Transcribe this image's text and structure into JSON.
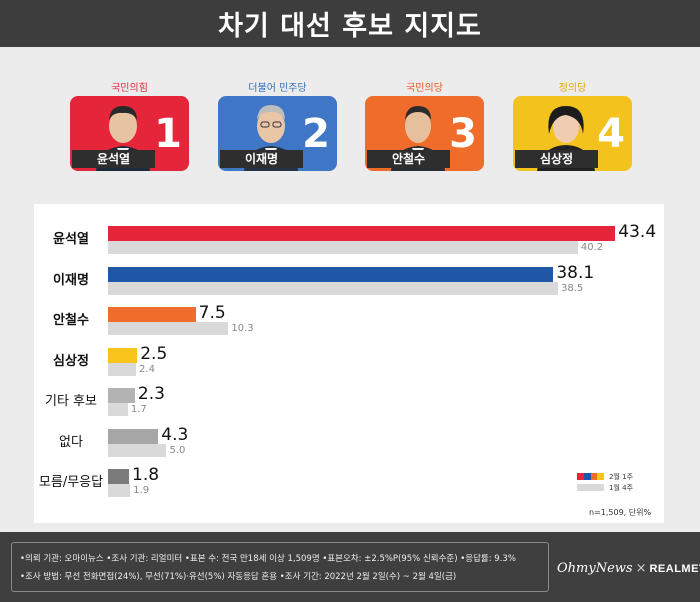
{
  "title": "차기 대선 후보 지지도",
  "candidates": [
    {
      "party": "국민의힘",
      "number": "1",
      "name": "윤석열",
      "color": "#e5263a",
      "party_color": "#e5263a"
    },
    {
      "party": "더불어 민주당",
      "number": "2",
      "name": "이재명",
      "color": "#3f77c6",
      "party_color": "#2f6fbf"
    },
    {
      "party": "국민의당",
      "number": "3",
      "name": "안철수",
      "color": "#ef6c2a",
      "party_color": "#e5581d"
    },
    {
      "party": "정의당",
      "number": "4",
      "name": "심상정",
      "color": "#f4c21c",
      "party_color": "#e3a900"
    }
  ],
  "legend": {
    "current": "2월 1주",
    "previous": "1월 4주",
    "colors": [
      "#e5263a",
      "#1f57a6",
      "#ef6c2a",
      "#f8c31a"
    ]
  },
  "sample_note": "n=1,509, 단위%",
  "footer": {
    "line1": "•의뢰 기관: 오마이뉴스 •조사 기관: 리얼미터 •표본 수: 전국 만18세 이상 1,509명 •표본오차: ±2.5%P(95% 신뢰수준) •응답률: 9.3%",
    "line2": "•조사 방법: 무선 전화면접(24%), 무선(71%)·유선(5%) 자동응답 혼용 •조사 기간: 2022년 2월 2일(수) ~ 2월 4일(금)",
    "brand_left": "OhmyNews",
    "brand_x": "×",
    "brand_right": "REALMETER"
  },
  "chart_data": {
    "type": "bar",
    "orientation": "horizontal",
    "categories": [
      "윤석열",
      "이재명",
      "안철수",
      "심상정",
      "기타 후보",
      "없다",
      "모름/무응답"
    ],
    "series": [
      {
        "name": "2월 1주",
        "values": [
          43.4,
          38.1,
          7.5,
          2.5,
          2.3,
          4.3,
          1.8
        ],
        "colors": [
          "#e5263a",
          "#1f57a6",
          "#ef6c2a",
          "#f8c31a",
          "#b3b3b3",
          "#a6a6a6",
          "#7a7a7a"
        ]
      },
      {
        "name": "1월 4주",
        "values": [
          40.2,
          38.5,
          10.3,
          2.4,
          1.7,
          5.0,
          1.9
        ],
        "color": "#d9d9d9"
      }
    ],
    "xlim": [
      0,
      45
    ],
    "grid": false,
    "legend_position": "bottom-right"
  }
}
